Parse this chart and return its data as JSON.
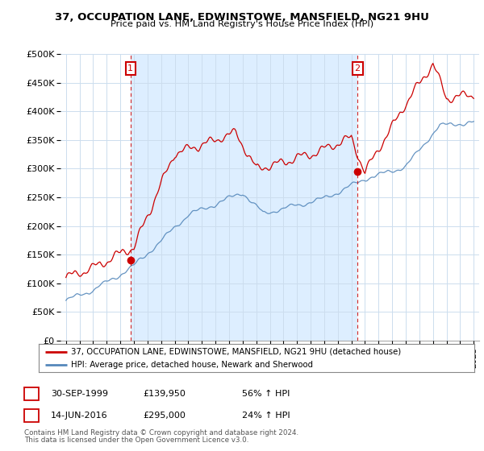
{
  "title": "37, OCCUPATION LANE, EDWINSTOWE, MANSFIELD, NG21 9HU",
  "subtitle": "Price paid vs. HM Land Registry's House Price Index (HPI)",
  "ytick_values": [
    0,
    50000,
    100000,
    150000,
    200000,
    250000,
    300000,
    350000,
    400000,
    450000,
    500000
  ],
  "ylim": [
    0,
    500000
  ],
  "xlim_start": 1994.6,
  "xlim_end": 2025.4,
  "sale1_year": 1999.75,
  "sale1_price": 139950,
  "sale1_label": "1",
  "sale1_date": "30-SEP-1999",
  "sale1_amount": "£139,950",
  "sale1_pct": "56% ↑ HPI",
  "sale2_year": 2016.45,
  "sale2_price": 295000,
  "sale2_label": "2",
  "sale2_date": "14-JUN-2016",
  "sale2_amount": "£295,000",
  "sale2_pct": "24% ↑ HPI",
  "line1_color": "#cc0000",
  "line2_color": "#5588bb",
  "shade_color": "#ddeeff",
  "marker_box_color": "#cc0000",
  "vline_color": "#cc0000",
  "legend1_text": "37, OCCUPATION LANE, EDWINSTOWE, MANSFIELD, NG21 9HU (detached house)",
  "legend2_text": "HPI: Average price, detached house, Newark and Sherwood",
  "footnote1": "Contains HM Land Registry data © Crown copyright and database right 2024.",
  "footnote2": "This data is licensed under the Open Government Licence v3.0.",
  "bg_color": "#ffffff",
  "grid_color": "#ccddee"
}
